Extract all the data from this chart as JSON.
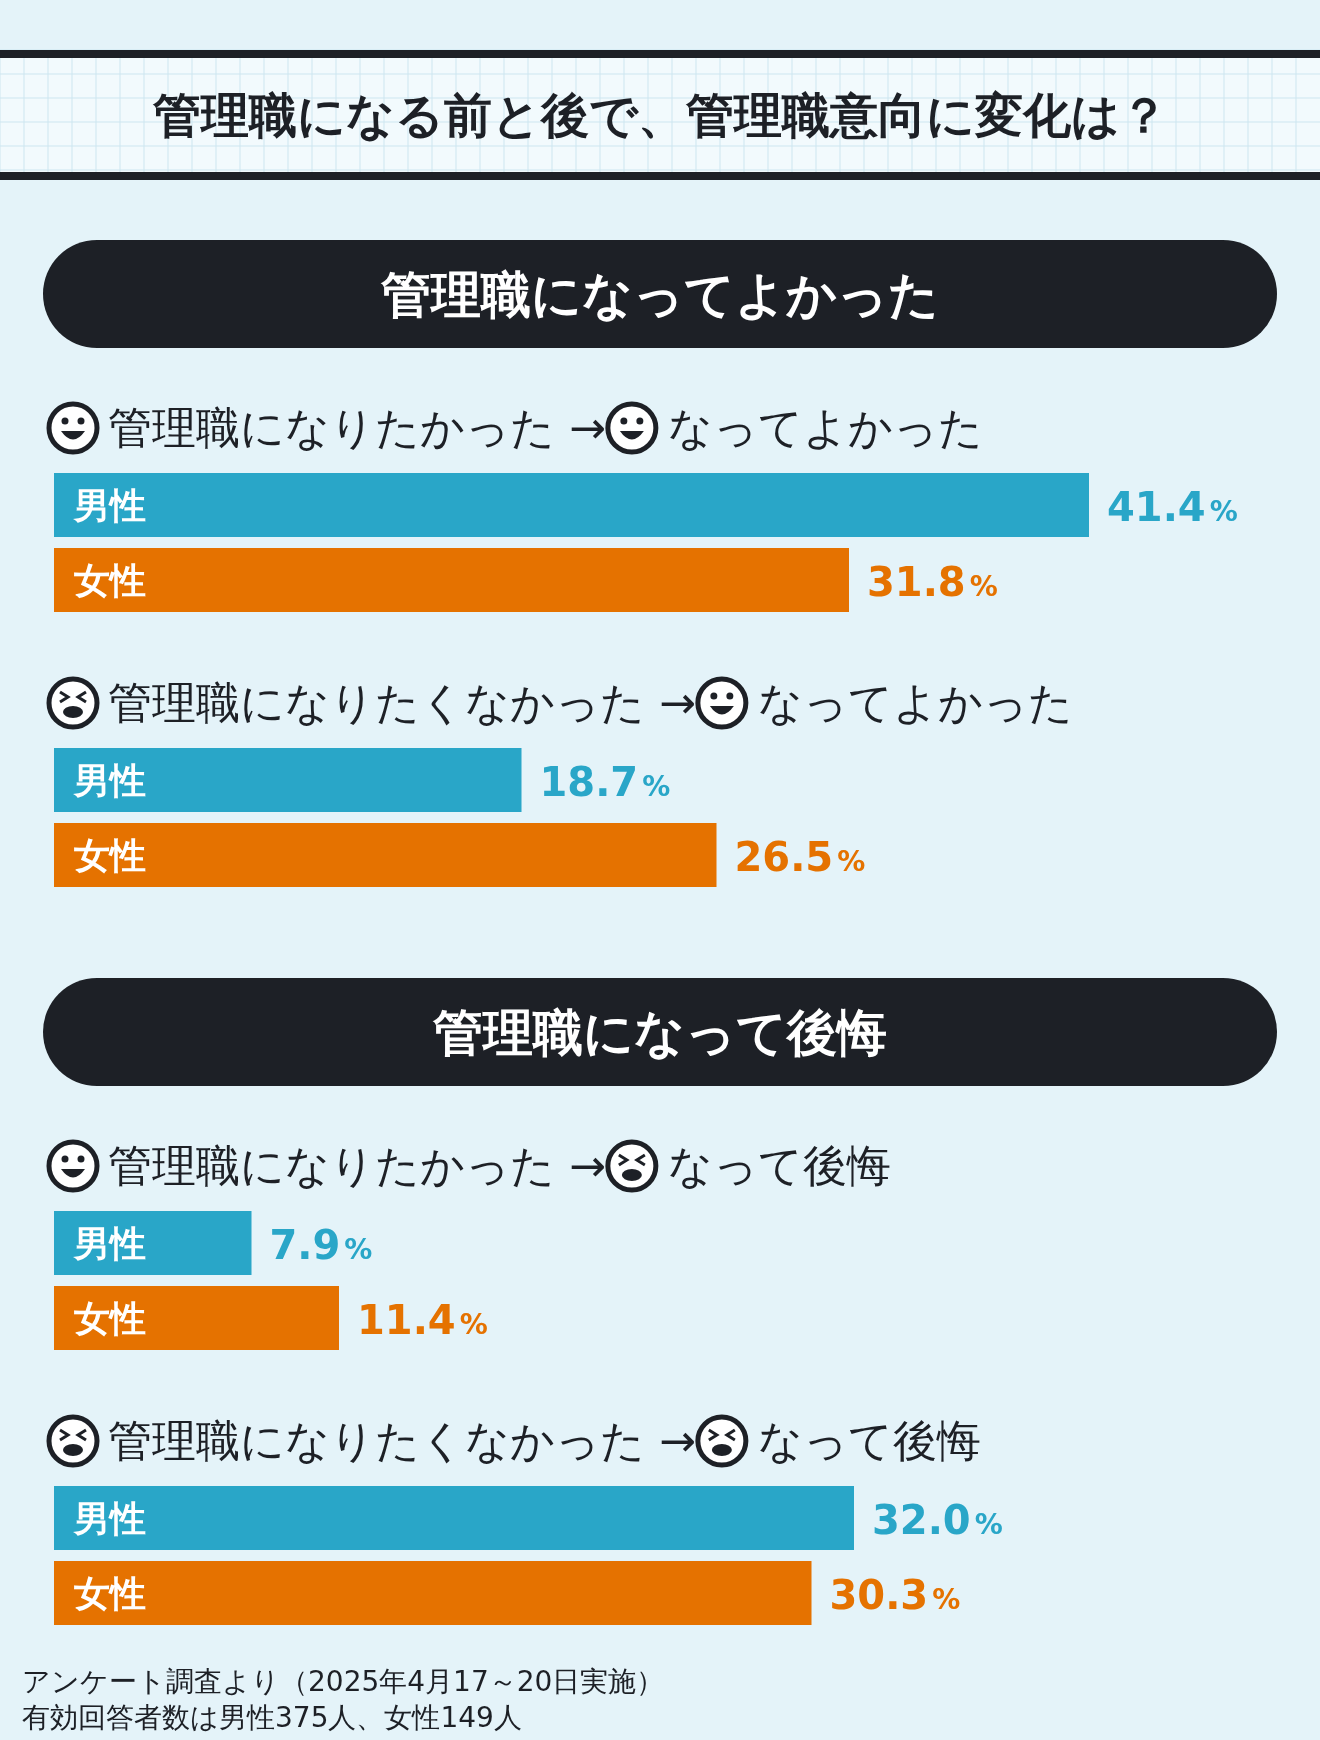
{
  "chart_data": [
    {
      "type": "bar",
      "orientation": "horizontal",
      "annotations": [
        "管理職になる前と後で、管理職意向に変化は？"
      ],
      "title": "管理職になってよかった",
      "categories": [
        "管理職になりたかった → なってよかった",
        "管理職になりたくなかった → なってよかった"
      ],
      "series": [
        {
          "name": "男性",
          "color": "#29a6c8",
          "values": [
            41.4,
            18.7
          ],
          "value_labels": [
            "41.4%",
            "18.7%"
          ]
        },
        {
          "name": "女性",
          "color": "#e57200",
          "values": [
            31.8,
            26.5
          ],
          "value_labels": [
            "31.8%",
            "26.5%"
          ]
        }
      ]
    },
    {
      "type": "bar",
      "orientation": "horizontal",
      "title": "管理職になって後悔",
      "categories": [
        "管理職になりたかった → なって後悔",
        "管理職になりたくなかった → なって後悔"
      ],
      "series": [
        {
          "name": "男性",
          "color": "#29a6c8",
          "values": [
            7.9,
            32.0
          ],
          "value_labels": [
            "7.9%",
            "32.0%"
          ]
        },
        {
          "name": "女性",
          "color": "#e57200",
          "values": [
            11.4,
            30.3
          ],
          "value_labels": [
            "11.4%",
            "30.3%"
          ]
        }
      ],
      "annotations": [
        "アンケート調査より（2025年4月17～20日実施）",
        "有効回答者数は男性375人、女性149人"
      ]
    }
  ]
}
